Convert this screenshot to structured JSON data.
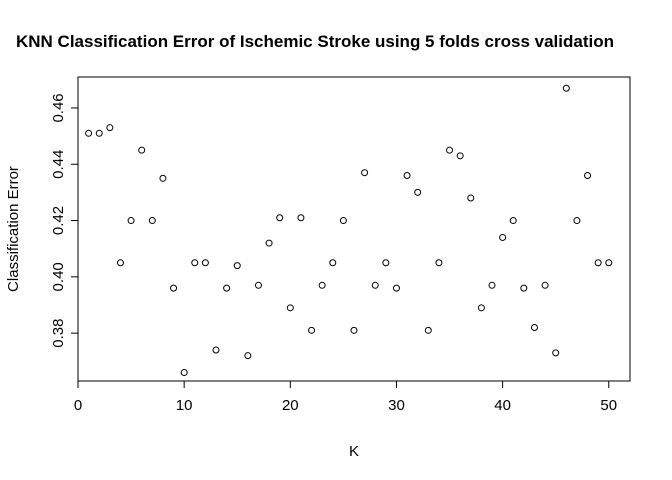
{
  "chart_data": {
    "type": "scatter",
    "title": "KNN Classification Error of Ischemic Stroke using 5 folds cross validation",
    "xlabel": "K",
    "ylabel": "Classification Error",
    "xlim": [
      0,
      52
    ],
    "ylim": [
      0.363,
      0.471
    ],
    "xticks": [
      0,
      10,
      20,
      30,
      40,
      50
    ],
    "yticks": [
      0.38,
      0.4,
      0.42,
      0.44,
      0.46
    ],
    "xtick_labels": [
      "0",
      "10",
      "20",
      "30",
      "40",
      "50"
    ],
    "ytick_labels": [
      "0.38",
      "0.40",
      "0.42",
      "0.44",
      "0.46"
    ],
    "grid": false,
    "marker": "open-circle",
    "x": [
      1,
      2,
      3,
      4,
      5,
      6,
      7,
      8,
      9,
      10,
      11,
      12,
      13,
      14,
      15,
      16,
      17,
      18,
      19,
      20,
      21,
      22,
      23,
      24,
      25,
      26,
      27,
      28,
      29,
      30,
      31,
      32,
      33,
      34,
      35,
      36,
      37,
      38,
      39,
      40,
      41,
      42,
      43,
      44,
      45,
      46,
      47,
      48,
      49,
      50
    ],
    "y": [
      0.451,
      0.451,
      0.453,
      0.405,
      0.42,
      0.445,
      0.42,
      0.435,
      0.396,
      0.366,
      0.405,
      0.405,
      0.374,
      0.396,
      0.404,
      0.372,
      0.397,
      0.412,
      0.421,
      0.389,
      0.421,
      0.381,
      0.397,
      0.405,
      0.42,
      0.381,
      0.437,
      0.397,
      0.405,
      0.396,
      0.436,
      0.43,
      0.381,
      0.405,
      0.445,
      0.443,
      0.428,
      0.389,
      0.397,
      0.414,
      0.42,
      0.396,
      0.382,
      0.397,
      0.373,
      0.467,
      0.42,
      0.436,
      0.405,
      0.405
    ]
  }
}
